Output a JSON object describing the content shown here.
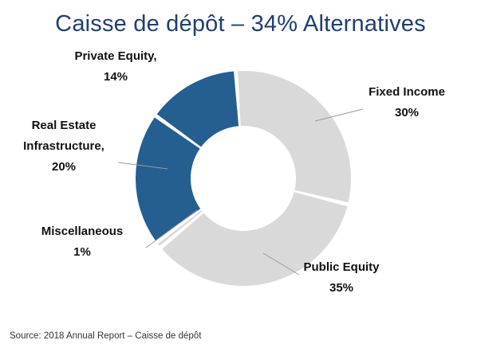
{
  "chart_data": {
    "type": "pie",
    "title": "Caisse de dépôt – 34% Alternatives",
    "slices": [
      {
        "label": [
          "Fixed Income",
          "30%"
        ],
        "value": 30,
        "color": "#d9d9d9"
      },
      {
        "label": [
          "Public Equity",
          "35%"
        ],
        "value": 35,
        "color": "#d9d9d9"
      },
      {
        "label": [
          "Miscellaneous",
          "1%"
        ],
        "value": 1,
        "color": "#d9d9d9"
      },
      {
        "label": [
          "Real Estate",
          "Infrastructure,",
          "20%"
        ],
        "value": 20,
        "color": "#255e91"
      },
      {
        "label": [
          "Private Equity,",
          "14%"
        ],
        "value": 14,
        "color": "#255e91"
      }
    ]
  },
  "source": "Source: 2018 Annual Report – Caisse de dépôt"
}
